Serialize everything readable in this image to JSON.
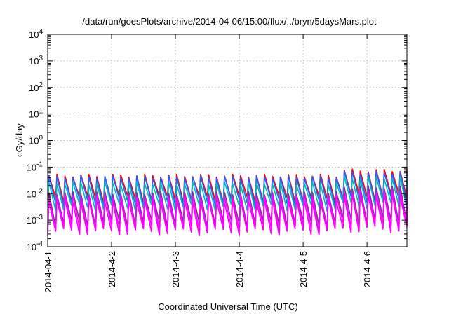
{
  "chart_data": {
    "type": "line",
    "title": "/data/run/goesPlots/archive/2014-04-06/15:00/flux/../bryn/5daysMars.plot",
    "xlabel": "Coordinated Universal Time (UTC)",
    "ylabel": "cGy/day",
    "yscale": "log",
    "ylim": [
      0.0001,
      10000
    ],
    "xlim": [
      "2014-04-01T00:00",
      "2014-04-06T15:00"
    ],
    "x_ticks": [
      "2014-04-01",
      "2014-04-02",
      "2014-04-03",
      "2014-04-04",
      "2014-04-05",
      "2014-04-06"
    ],
    "x_tick_labels": [
      "2014-04-1",
      "2014-4-2",
      "2014-4-3",
      "2014-4-4",
      "2014-4-5",
      "2014-4-6"
    ],
    "y_ticks": [
      0.0001,
      0.001,
      0.01,
      0.1,
      1,
      10,
      100,
      1000,
      10000
    ],
    "y_tick_labels": [
      {
        "base": "10",
        "exp": "-4"
      },
      {
        "base": "10",
        "exp": "-3"
      },
      {
        "base": "10",
        "exp": "-2"
      },
      {
        "base": "10",
        "exp": "-1"
      },
      {
        "base": "10",
        "exp": "0"
      },
      {
        "base": "10",
        "exp": "1"
      },
      {
        "base": "10",
        "exp": "2"
      },
      {
        "base": "10",
        "exp": "3"
      },
      {
        "base": "10",
        "exp": "4"
      }
    ],
    "grid": true,
    "legend": "none",
    "sawtooth_period_hours": 3,
    "series": [
      {
        "color": "#ff0000",
        "peak": 0.055,
        "trough": 0.0075,
        "late_peak": 0.085
      },
      {
        "color": "#2060ff",
        "peak": 0.048,
        "trough": 0.0055,
        "late_peak": 0.07
      },
      {
        "color": "#00b8c0",
        "peak": 0.028,
        "trough": 0.0035,
        "late_peak": 0.045
      },
      {
        "color": "#8030a0",
        "peak": 0.012,
        "trough": 0.0009,
        "late_peak": 0.02
      },
      {
        "color": "#ff00ff",
        "peak": 0.009,
        "trough": 0.0006,
        "late_peak": 0.014
      },
      {
        "color": "#ff00ff",
        "peak": 0.006,
        "trough": 0.00042,
        "late_peak": 0.01
      }
    ]
  }
}
